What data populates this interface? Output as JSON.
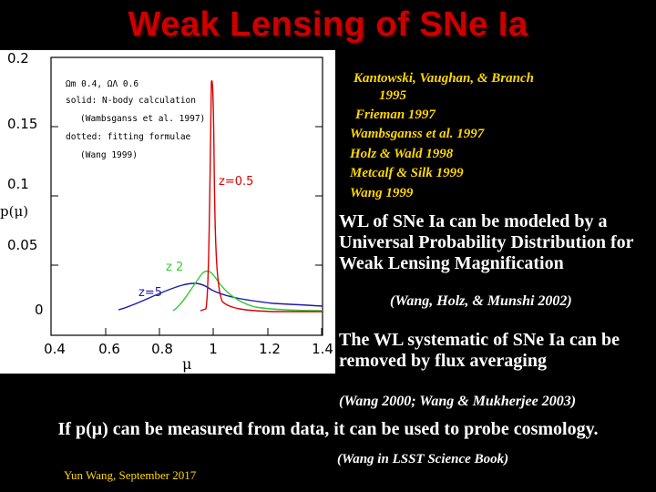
{
  "title": "Weak Lensing of SNe Ia",
  "plot": {
    "y_ticks": [
      "0.2",
      "0.15",
      "0.1",
      "0.05",
      "0"
    ],
    "x_ticks": [
      "0.4",
      "0.6",
      "0.8",
      "1",
      "1.2",
      "1.4"
    ],
    "ylabel": "p(μ)",
    "xlabel": "μ",
    "legend": [
      "Ωm 0.4, ΩΛ 0.6",
      "solid: N-body calculation",
      "(Wambsganss et al. 1997)",
      "dotted: fitting formulae",
      "(Wang 1999)"
    ],
    "curve_labels": {
      "z05": "z=0.5",
      "z2": "z 2",
      "z5": "z=5"
    },
    "colors": {
      "z05": "#dd0000",
      "z2": "#33cc33",
      "z5": "#1a1aaa"
    }
  },
  "references": [
    "Kantowski, Vaughan, & Branch",
    "1995",
    "Frieman 1997",
    "Wambsganss  et al. 1997",
    "Holz & Wald 1998",
    "Metcalf & Silk 1999",
    "Wang 1999"
  ],
  "wl_modeled": "WL of SNe Ia can be modeled by a Universal Probability Distribution for Weak Lensing Magnification",
  "wl_modeled_cite": "(Wang, Holz, & Munshi 2002)",
  "wl_systematic": "The WL systematic of SNe Ia can be removed by flux averaging",
  "wl_systematic_cite": "(Wang 2000; Wang & Mukherjee 2003)",
  "bottom_line": "If p(μ) can be measured from data, it can be used to probe cosmology.",
  "book_cite": "(Wang in LSST Science Book)",
  "footer": "Yun Wang, September 2017"
}
